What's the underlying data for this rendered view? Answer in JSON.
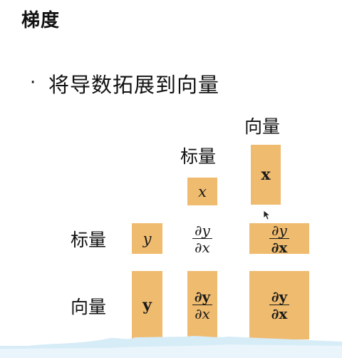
{
  "title": "梯度",
  "bullet": {
    "marker": "·",
    "text": "将导数拓展到向量"
  },
  "headers": {
    "col_vector": "向量",
    "col_scalar": "标量",
    "row_scalar": "标量",
    "row_vector": "向量"
  },
  "cells": {
    "x": "x",
    "bold_x": "x",
    "y": "y",
    "bold_y": "y",
    "dy_dx": {
      "num": "∂y",
      "den": "∂x"
    },
    "dy_dbx": {
      "num": "∂y",
      "den": "∂x"
    },
    "dby_dx": {
      "num": "∂y",
      "den": "∂x"
    },
    "dby_dbx": {
      "num": "∂y",
      "den": "∂x"
    }
  },
  "colors": {
    "cell_fill": "#efbb6f"
  }
}
